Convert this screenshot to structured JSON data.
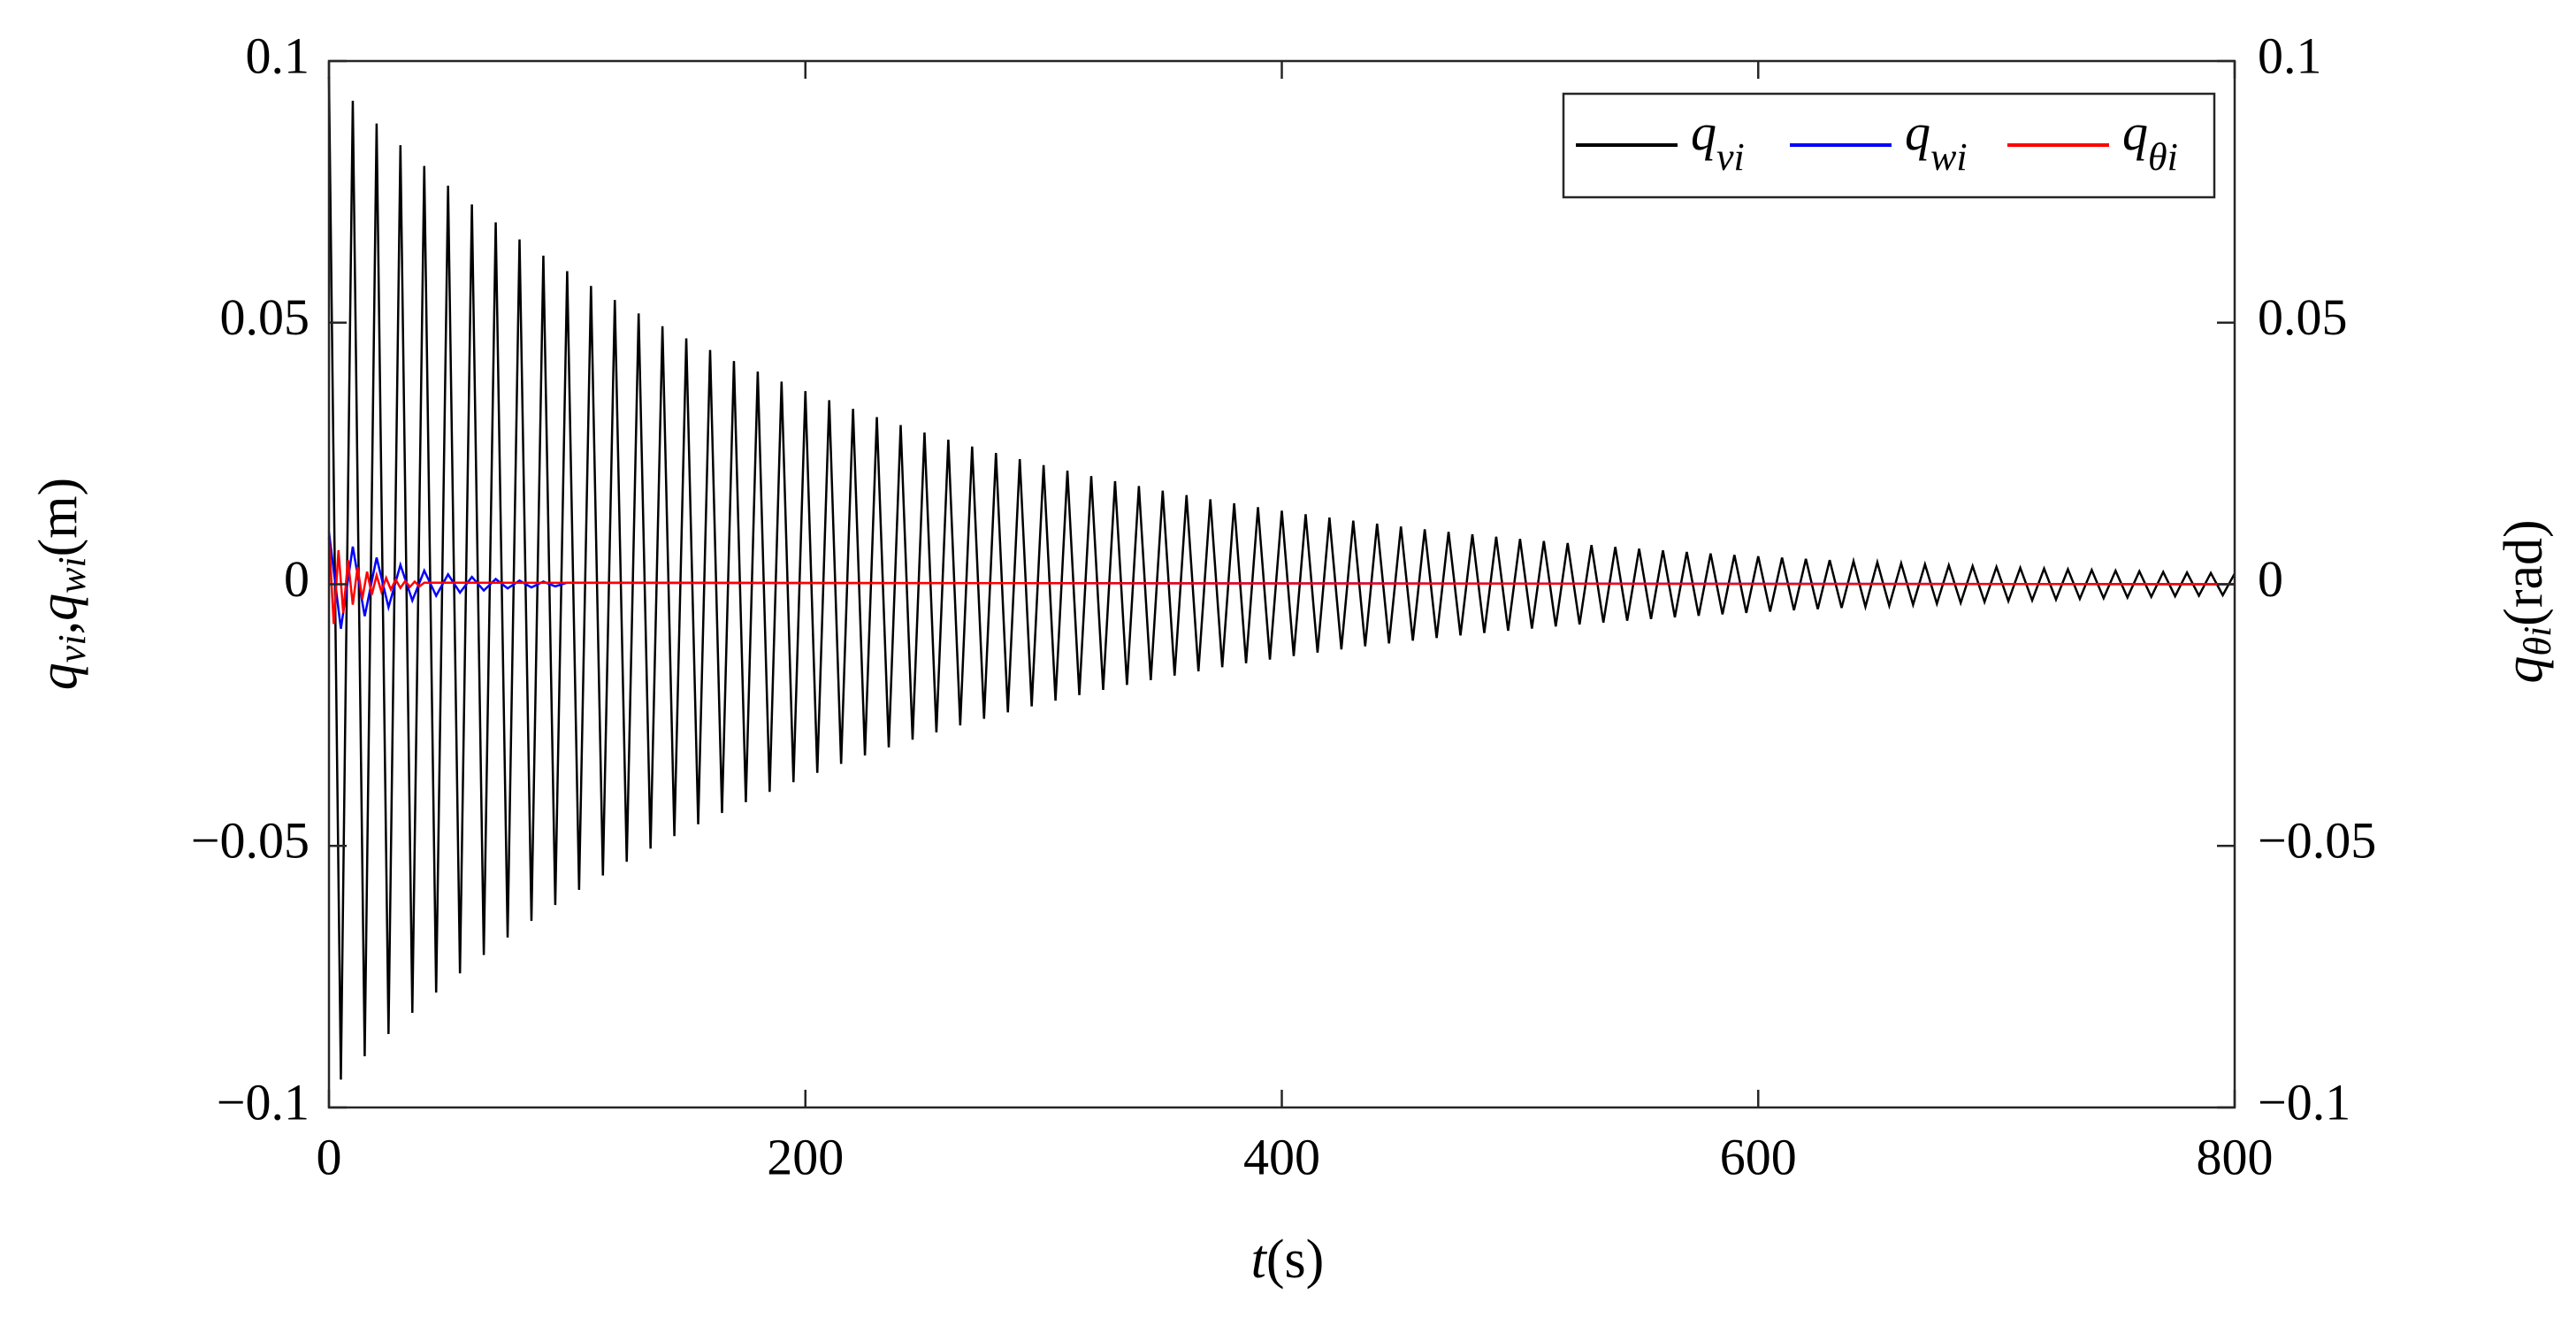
{
  "chart_data": {
    "type": "line",
    "xlabel": {
      "parts": [
        "t",
        "(s)"
      ]
    },
    "ylabel": {
      "parts": [
        "q",
        "vi",
        ",",
        "q",
        "wi",
        "(m)"
      ]
    },
    "y2label": {
      "parts": [
        "q",
        "θi",
        "(rad)"
      ]
    },
    "xlim": [
      0,
      800
    ],
    "xticks": [
      0,
      200,
      400,
      600,
      800
    ],
    "ylim": [
      -0.1,
      0.1
    ],
    "yticks": [
      {
        "value": -0.1,
        "label": "−0.1"
      },
      {
        "value": -0.05,
        "label": "−0.05"
      },
      0,
      0.05,
      0.1
    ],
    "y2lim": [
      -0.1,
      0.1
    ],
    "y2ticks": [
      {
        "value": -0.1,
        "label": "−0.1"
      },
      {
        "value": -0.05,
        "label": "−0.05"
      },
      0,
      0.05,
      0.1
    ],
    "legend": "upper right",
    "series": [
      {
        "name": "q",
        "subscript": "vi",
        "color": "#000000",
        "x": [
          0,
          5,
          10,
          15,
          20,
          25,
          30,
          35,
          40,
          45,
          50,
          55,
          60,
          65,
          70,
          75,
          80,
          85,
          90,
          95,
          100,
          105,
          110,
          115,
          120,
          125,
          130,
          135,
          140,
          145,
          150,
          155,
          160,
          165,
          170,
          175,
          180,
          185,
          190,
          195,
          200,
          205,
          210,
          215,
          220,
          225,
          230,
          235,
          240,
          245,
          250,
          255,
          260,
          265,
          270,
          275,
          280,
          285,
          290,
          295,
          300,
          305,
          310,
          315,
          320,
          325,
          330,
          335,
          340,
          345,
          350,
          355,
          360,
          365,
          370,
          375,
          380,
          385,
          390,
          395,
          400,
          405,
          410,
          415,
          420,
          425,
          430,
          435,
          440,
          445,
          450,
          455,
          460,
          465,
          470,
          475,
          480,
          485,
          490,
          495,
          500,
          505,
          510,
          515,
          520,
          525,
          530,
          535,
          540,
          545,
          550,
          555,
          560,
          565,
          570,
          575,
          580,
          585,
          590,
          595,
          600,
          605,
          610,
          615,
          620,
          625,
          630,
          635,
          640,
          645,
          650,
          655,
          660,
          665,
          670,
          675,
          680,
          685,
          690,
          695,
          700,
          705,
          710,
          715,
          720,
          725,
          730,
          735,
          740,
          745,
          750,
          755,
          760,
          765,
          770,
          775,
          780,
          785,
          790,
          795,
          800
        ],
        "values": [
          0.097,
          -0.09468,
          0.09242,
          -0.09021,
          0.08806,
          -0.08596,
          0.08391,
          -0.08191,
          0.07995,
          -0.07804,
          0.07618,
          -0.07436,
          0.07259,
          -0.07086,
          0.06917,
          -0.06752,
          0.06591,
          -0.06434,
          0.0628,
          -0.0613,
          0.05984,
          -0.05841,
          0.05702,
          -0.05566,
          0.05433,
          -0.05303,
          0.05176,
          -0.05053,
          0.04932,
          -0.04814,
          0.04699,
          -0.04587,
          0.04478,
          -0.04371,
          0.04267,
          -0.04165,
          0.04066,
          -0.03969,
          0.03874,
          -0.03782,
          0.03692,
          -0.03604,
          0.03518,
          -0.03434,
          0.03352,
          -0.03272,
          0.03194,
          -0.03118,
          0.03043,
          -0.02971,
          0.029,
          -0.02831,
          0.02763,
          -0.02697,
          0.02633,
          -0.0257,
          0.02509,
          -0.02449,
          0.02391,
          -0.02334,
          0.02278,
          -0.02224,
          0.02171,
          -0.02119,
          0.02068,
          -0.02019,
          0.01971,
          -0.01924,
          0.01878,
          -0.01833,
          0.01789,
          -0.01746,
          0.01705,
          -0.01664,
          0.01624,
          -0.01585,
          0.01547,
          -0.0151,
          0.01474,
          -0.01439,
          0.01405,
          -0.01371,
          0.01339,
          -0.01307,
          0.01275,
          -0.01245,
          0.01215,
          -0.01186,
          0.01158,
          -0.0113,
          0.01103,
          -0.01077,
          0.01051,
          -0.01026,
          0.01002,
          -0.00978,
          0.00954,
          -0.00932,
          0.00909,
          -0.00888,
          0.00866,
          -0.00846,
          0.00825,
          -0.00806,
          0.00787,
          -0.00768,
          0.0075,
          -0.00732,
          0.00714,
          -0.00697,
          0.0068,
          -0.00664,
          0.00648,
          -0.00633,
          0.00618,
          -0.00603,
          0.00588,
          -0.00574,
          0.00561,
          -0.00547,
          0.00534,
          -0.00522,
          0.00509,
          -0.00497,
          0.00485,
          -0.00474,
          0.00462,
          -0.00451,
          0.00441,
          -0.0043,
          0.0042,
          -0.0041,
          0.004,
          -0.00391,
          0.00381,
          -0.00372,
          0.00363,
          -0.00355,
          0.00346,
          -0.00338,
          0.0033,
          -0.00322,
          0.00314,
          -0.00307,
          0.00299,
          -0.00292,
          0.00285,
          -0.00279,
          0.00272,
          -0.00266,
          0.00259,
          -0.00253,
          0.00247,
          -0.00241,
          0.00235,
          -0.0023,
          0.00224,
          -0.00219,
          0.00214,
          -0.00209,
          0.00204
        ]
      },
      {
        "name": "q",
        "subscript": "wi",
        "color": "#0000ff",
        "x": [
          0,
          5,
          10,
          15,
          20,
          25,
          30,
          35,
          40,
          45,
          50,
          55,
          60,
          65,
          70,
          75,
          80,
          85,
          90,
          95,
          100,
          800
        ],
        "values": [
          0.01,
          -0.0085,
          0.0072,
          -0.0061,
          0.0051,
          -0.0044,
          0.0037,
          -0.0031,
          0.0026,
          -0.0022,
          0.0019,
          -0.0016,
          0.0014,
          -0.0012,
          0.001,
          -0.0008,
          0.0007,
          -0.0006,
          0.0005,
          -0.0004,
          0.0003,
          0
        ]
      },
      {
        "name": "q",
        "subscript": "θi",
        "color": "#ff0000",
        "axis": "y2",
        "x": [
          0,
          2,
          4,
          6,
          8,
          10,
          12,
          14,
          16,
          18,
          20,
          22,
          24,
          26,
          28,
          30,
          32,
          34,
          36,
          38,
          40,
          800
        ],
        "values": [
          0.009,
          -0.0076,
          0.0065,
          -0.0055,
          0.0046,
          -0.0039,
          0.0033,
          -0.0028,
          0.0024,
          -0.002,
          0.0017,
          -0.0014,
          0.0012,
          -0.001,
          0.0009,
          -0.0007,
          0.0006,
          -0.0005,
          0.0005,
          -0.0004,
          0.0003,
          0
        ]
      }
    ]
  }
}
